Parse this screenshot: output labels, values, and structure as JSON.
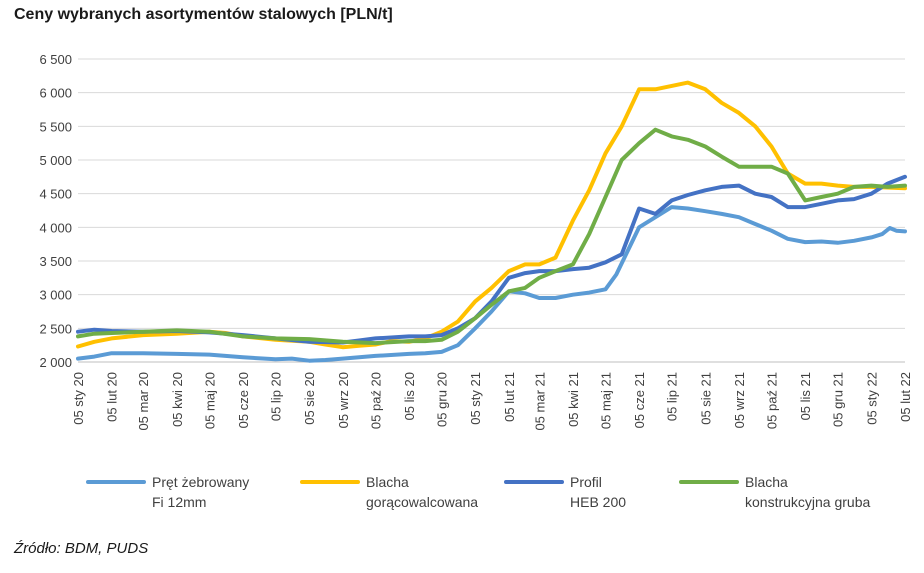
{
  "chart_data": {
    "type": "line",
    "title": "Ceny wybranych asortymentów stalowych [PLN/t]",
    "source": "Źródło: BDM, PUDS",
    "ylim": [
      2000,
      6500
    ],
    "yticks": [
      2000,
      2500,
      3000,
      3500,
      4000,
      4500,
      5000,
      5500,
      6000,
      6500
    ],
    "ytick_labels": [
      "2 000",
      "2 500",
      "3 000",
      "3 500",
      "4 000",
      "4 500",
      "5 000",
      "5 500",
      "6 000",
      "6 500"
    ],
    "xlim": [
      "2020-01-05",
      "2022-02-05"
    ],
    "x_tick_labels": [
      "05 sty 20",
      "05 lut 20",
      "05 mar 20",
      "05 kwi 20",
      "05 maj 20",
      "05 cze 20",
      "05 lip 20",
      "05 sie 20",
      "05 wrz 20",
      "05 paź 20",
      "05 lis 20",
      "05 gru 20",
      "05 sty 21",
      "05 lut 21",
      "05 mar 21",
      "05 kwi 21",
      "05 maj 21",
      "05 cze 21",
      "05 lip 21",
      "05 sie 21",
      "05 wrz 21",
      "05 paź 21",
      "05 lis 21",
      "05 gru 21",
      "05 sty 22",
      "05 lut 22"
    ],
    "grid": true,
    "legend_position": "bottom",
    "series": [
      {
        "name": "Pręt żebrowany Fi 12mm",
        "legend_lines": [
          "Pręt żebrowany",
          "Fi 12mm"
        ],
        "color": "#5B9BD5",
        "points": [
          [
            "2020-01-05",
            2050
          ],
          [
            "2020-01-20",
            2080
          ],
          [
            "2020-02-05",
            2130
          ],
          [
            "2020-03-05",
            2130
          ],
          [
            "2020-04-05",
            2120
          ],
          [
            "2020-05-05",
            2110
          ],
          [
            "2020-06-05",
            2070
          ],
          [
            "2020-07-05",
            2040
          ],
          [
            "2020-07-20",
            2050
          ],
          [
            "2020-08-05",
            2020
          ],
          [
            "2020-08-20",
            2030
          ],
          [
            "2020-09-05",
            2050
          ],
          [
            "2020-10-05",
            2090
          ],
          [
            "2020-11-05",
            2120
          ],
          [
            "2020-11-20",
            2130
          ],
          [
            "2020-12-05",
            2150
          ],
          [
            "2020-12-20",
            2250
          ],
          [
            "2021-01-05",
            2500
          ],
          [
            "2021-01-20",
            2750
          ],
          [
            "2021-02-05",
            3050
          ],
          [
            "2021-02-20",
            3020
          ],
          [
            "2021-03-05",
            2950
          ],
          [
            "2021-03-20",
            2950
          ],
          [
            "2021-04-05",
            3000
          ],
          [
            "2021-04-20",
            3030
          ],
          [
            "2021-05-05",
            3080
          ],
          [
            "2021-05-15",
            3300
          ],
          [
            "2021-06-05",
            4000
          ],
          [
            "2021-06-20",
            4150
          ],
          [
            "2021-07-05",
            4300
          ],
          [
            "2021-07-20",
            4280
          ],
          [
            "2021-08-05",
            4240
          ],
          [
            "2021-08-20",
            4200
          ],
          [
            "2021-09-05",
            4150
          ],
          [
            "2021-09-20",
            4050
          ],
          [
            "2021-10-05",
            3950
          ],
          [
            "2021-10-20",
            3830
          ],
          [
            "2021-11-05",
            3780
          ],
          [
            "2021-11-20",
            3790
          ],
          [
            "2021-12-05",
            3770
          ],
          [
            "2021-12-20",
            3800
          ],
          [
            "2022-01-05",
            3850
          ],
          [
            "2022-01-15",
            3900
          ],
          [
            "2022-01-22",
            3990
          ],
          [
            "2022-01-28",
            3950
          ],
          [
            "2022-02-05",
            3940
          ]
        ]
      },
      {
        "name": "Blacha gorącowalcowana",
        "legend_lines": [
          "Blacha",
          "gorącowalcowana"
        ],
        "color": "#FFC000",
        "points": [
          [
            "2020-01-05",
            2230
          ],
          [
            "2020-01-20",
            2300
          ],
          [
            "2020-02-05",
            2350
          ],
          [
            "2020-03-05",
            2400
          ],
          [
            "2020-04-05",
            2420
          ],
          [
            "2020-05-05",
            2450
          ],
          [
            "2020-05-20",
            2430
          ],
          [
            "2020-06-05",
            2380
          ],
          [
            "2020-07-05",
            2330
          ],
          [
            "2020-08-05",
            2300
          ],
          [
            "2020-08-20",
            2260
          ],
          [
            "2020-09-05",
            2220
          ],
          [
            "2020-09-20",
            2240
          ],
          [
            "2020-10-05",
            2260
          ],
          [
            "2020-10-20",
            2310
          ],
          [
            "2020-11-05",
            2300
          ],
          [
            "2020-11-20",
            2350
          ],
          [
            "2020-12-05",
            2450
          ],
          [
            "2020-12-20",
            2600
          ],
          [
            "2021-01-05",
            2900
          ],
          [
            "2021-01-20",
            3100
          ],
          [
            "2021-02-05",
            3350
          ],
          [
            "2021-02-20",
            3450
          ],
          [
            "2021-03-05",
            3450
          ],
          [
            "2021-03-20",
            3550
          ],
          [
            "2021-04-05",
            4100
          ],
          [
            "2021-04-20",
            4550
          ],
          [
            "2021-05-05",
            5100
          ],
          [
            "2021-05-20",
            5500
          ],
          [
            "2021-06-05",
            6050
          ],
          [
            "2021-06-20",
            6050
          ],
          [
            "2021-07-05",
            6100
          ],
          [
            "2021-07-20",
            6150
          ],
          [
            "2021-08-05",
            6050
          ],
          [
            "2021-08-20",
            5850
          ],
          [
            "2021-09-05",
            5700
          ],
          [
            "2021-09-20",
            5500
          ],
          [
            "2021-10-05",
            5200
          ],
          [
            "2021-10-20",
            4800
          ],
          [
            "2021-11-05",
            4650
          ],
          [
            "2021-11-20",
            4650
          ],
          [
            "2021-12-05",
            4620
          ],
          [
            "2021-12-20",
            4600
          ],
          [
            "2022-01-05",
            4600
          ],
          [
            "2022-02-05",
            4580
          ]
        ]
      },
      {
        "name": "Profil HEB 200",
        "legend_lines": [
          "Profil",
          "HEB 200"
        ],
        "color": "#4472C4",
        "points": [
          [
            "2020-01-05",
            2450
          ],
          [
            "2020-01-20",
            2480
          ],
          [
            "2020-02-05",
            2460
          ],
          [
            "2020-03-05",
            2450
          ],
          [
            "2020-04-05",
            2460
          ],
          [
            "2020-05-05",
            2440
          ],
          [
            "2020-06-05",
            2400
          ],
          [
            "2020-07-05",
            2350
          ],
          [
            "2020-08-05",
            2300
          ],
          [
            "2020-09-05",
            2290
          ],
          [
            "2020-09-20",
            2320
          ],
          [
            "2020-10-05",
            2350
          ],
          [
            "2020-11-05",
            2380
          ],
          [
            "2020-11-20",
            2380
          ],
          [
            "2020-12-05",
            2400
          ],
          [
            "2020-12-20",
            2500
          ],
          [
            "2021-01-05",
            2650
          ],
          [
            "2021-01-20",
            2900
          ],
          [
            "2021-02-05",
            3250
          ],
          [
            "2021-02-20",
            3320
          ],
          [
            "2021-03-05",
            3350
          ],
          [
            "2021-03-20",
            3350
          ],
          [
            "2021-04-05",
            3380
          ],
          [
            "2021-04-20",
            3400
          ],
          [
            "2021-05-05",
            3480
          ],
          [
            "2021-05-20",
            3600
          ],
          [
            "2021-06-05",
            4280
          ],
          [
            "2021-06-20",
            4200
          ],
          [
            "2021-07-05",
            4400
          ],
          [
            "2021-07-20",
            4480
          ],
          [
            "2021-08-05",
            4550
          ],
          [
            "2021-08-20",
            4600
          ],
          [
            "2021-09-05",
            4620
          ],
          [
            "2021-09-20",
            4500
          ],
          [
            "2021-10-05",
            4450
          ],
          [
            "2021-10-20",
            4300
          ],
          [
            "2021-11-05",
            4300
          ],
          [
            "2021-11-20",
            4350
          ],
          [
            "2021-12-05",
            4400
          ],
          [
            "2021-12-20",
            4420
          ],
          [
            "2022-01-05",
            4500
          ],
          [
            "2022-01-20",
            4650
          ],
          [
            "2022-02-05",
            4750
          ]
        ]
      },
      {
        "name": "Blacha konstrukcyjna gruba",
        "legend_lines": [
          "Blacha",
          "konstrukcyjna gruba"
        ],
        "color": "#70AD47",
        "points": [
          [
            "2020-01-05",
            2380
          ],
          [
            "2020-01-20",
            2420
          ],
          [
            "2020-02-05",
            2430
          ],
          [
            "2020-03-05",
            2450
          ],
          [
            "2020-04-05",
            2470
          ],
          [
            "2020-05-05",
            2450
          ],
          [
            "2020-06-05",
            2380
          ],
          [
            "2020-07-05",
            2350
          ],
          [
            "2020-08-05",
            2340
          ],
          [
            "2020-09-05",
            2300
          ],
          [
            "2020-10-05",
            2280
          ],
          [
            "2020-11-05",
            2310
          ],
          [
            "2020-11-20",
            2310
          ],
          [
            "2020-12-05",
            2330
          ],
          [
            "2020-12-20",
            2450
          ],
          [
            "2021-01-05",
            2650
          ],
          [
            "2021-01-20",
            2850
          ],
          [
            "2021-02-05",
            3050
          ],
          [
            "2021-02-20",
            3100
          ],
          [
            "2021-03-05",
            3250
          ],
          [
            "2021-03-20",
            3350
          ],
          [
            "2021-04-05",
            3450
          ],
          [
            "2021-04-20",
            3900
          ],
          [
            "2021-05-05",
            4450
          ],
          [
            "2021-05-20",
            5000
          ],
          [
            "2021-06-05",
            5250
          ],
          [
            "2021-06-20",
            5450
          ],
          [
            "2021-07-05",
            5350
          ],
          [
            "2021-07-20",
            5300
          ],
          [
            "2021-08-05",
            5200
          ],
          [
            "2021-08-20",
            5050
          ],
          [
            "2021-09-05",
            4900
          ],
          [
            "2021-09-20",
            4900
          ],
          [
            "2021-10-05",
            4900
          ],
          [
            "2021-10-20",
            4800
          ],
          [
            "2021-11-05",
            4400
          ],
          [
            "2021-11-20",
            4450
          ],
          [
            "2021-12-05",
            4500
          ],
          [
            "2021-12-20",
            4600
          ],
          [
            "2022-01-05",
            4620
          ],
          [
            "2022-01-20",
            4600
          ],
          [
            "2022-02-05",
            4620
          ]
        ]
      }
    ]
  }
}
